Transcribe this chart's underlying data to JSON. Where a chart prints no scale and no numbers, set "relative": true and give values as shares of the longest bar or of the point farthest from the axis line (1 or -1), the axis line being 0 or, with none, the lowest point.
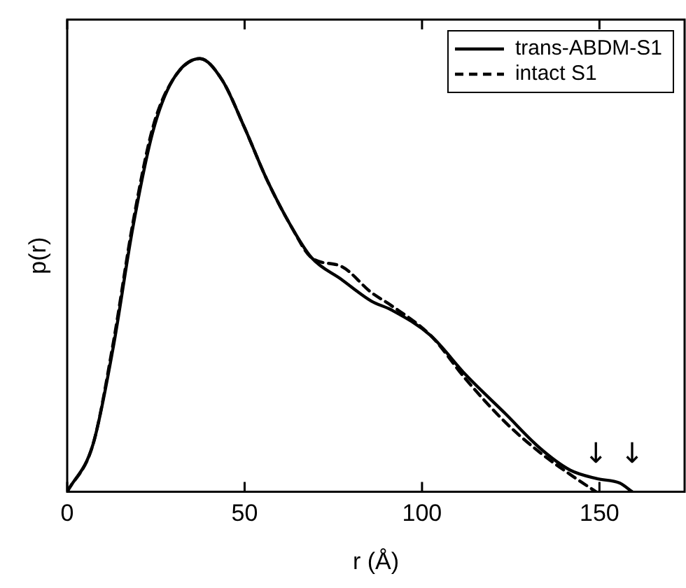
{
  "chart_data": {
    "type": "line",
    "xlabel": "r (Å)",
    "ylabel": "p(r)",
    "relative": true,
    "xlim": [
      0,
      174
    ],
    "xticks": [
      0,
      50,
      100,
      150
    ],
    "tick_labels": "x",
    "legend": "top right",
    "annotations": [
      "↓",
      "↓"
    ],
    "marker": "none",
    "grid": false,
    "series": [
      {
        "name": "trans-ABDM-S1",
        "color": "#000000",
        "line_style": "solid",
        "x": [
          0,
          7.3,
          12.9,
          18.5,
          24.1,
          29.7,
          37.4,
          43.7,
          50,
          56.3,
          63.3,
          68.9,
          77.3,
          85.7,
          91.3,
          102.5,
          112.3,
          123.5,
          133.3,
          141.7,
          149.4,
          155.7,
          159.2
        ],
        "values": [
          0,
          0.11,
          0.33,
          0.61,
          0.83,
          0.95,
          1,
          0.95,
          0.84,
          0.72,
          0.61,
          0.54,
          0.49,
          0.44,
          0.42,
          0.36,
          0.27,
          0.18,
          0.1,
          0.05,
          0.03,
          0.02,
          0
        ]
      },
      {
        "name": "intact S1",
        "color": "#000000",
        "line_style": "dashed",
        "x": [
          0,
          7.3,
          12.9,
          18.5,
          24.1,
          29.7,
          37.4,
          43.7,
          50,
          56.3,
          63.3,
          68.9,
          77.3,
          85.7,
          91.3,
          102.5,
          112.3,
          123.5,
          133.3,
          141.7,
          149
        ],
        "values": [
          0,
          0.11,
          0.34,
          0.62,
          0.84,
          0.95,
          1,
          0.95,
          0.84,
          0.72,
          0.61,
          0.54,
          0.52,
          0.46,
          0.43,
          0.36,
          0.26,
          0.16,
          0.09,
          0.04,
          0
        ]
      }
    ]
  }
}
